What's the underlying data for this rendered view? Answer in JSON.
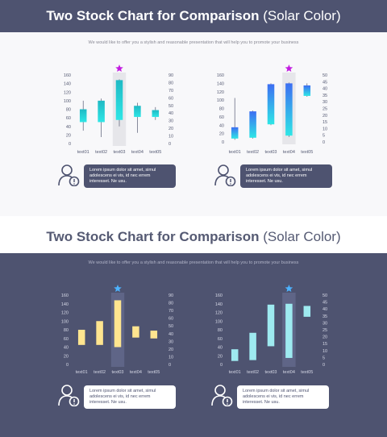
{
  "slides": [
    {
      "title_bold": "Two Stock Chart for Comparison",
      "title_light": "(Solar Color)",
      "subtitle": "We would like to offer you a stylish and reasonable presentation that will help you to promote your business",
      "callouts": [
        "Lorem ipsum dolor sit amet, simul adolescens ei vis, id nec errem interesset. Ne usu.",
        "Lorem ipsum dolor sit amet, simul adolescens ei vis, id nec errem interesset. Ne usu."
      ]
    },
    {
      "title_bold": "Two Stock Chart for Comparison",
      "title_light": "(Solar Color)",
      "subtitle": "We would like to offer you a stylish and reasonable presentation that will help you to promote your business",
      "callouts": [
        "Lorem ipsum dolor sit amet, simul adolescens ei vis, id nec errem interesset. Ne usu.",
        "Lorem ipsum dolor sit amet, simul adolescens ei vis, id nec errem interesset. Ne usu."
      ]
    }
  ],
  "colors": {
    "dark": "#4e5370",
    "cyan": "#2ee6e6",
    "blue": "#3d6ef2",
    "yellow": "#ffe58f",
    "lightcyan": "#9eeaf0",
    "star_purple": "#c21be0",
    "star_blue": "#4db3ff"
  },
  "icons": [
    "star-icon",
    "person-alert-icon"
  ],
  "chart_data": [
    {
      "type": "candlestick",
      "title": "",
      "categories": [
        "text01",
        "text02",
        "text03",
        "text04",
        "text05"
      ],
      "left_axis": {
        "ticks": [
          0,
          20,
          40,
          60,
          80,
          100,
          120,
          140,
          160
        ],
        "range": [
          0,
          160
        ]
      },
      "right_axis": {
        "ticks": [
          0,
          10,
          20,
          30,
          40,
          50,
          60,
          70,
          80,
          90
        ],
        "range": [
          0,
          90
        ]
      },
      "open": [
        80,
        100,
        148,
        88,
        78
      ],
      "close": [
        50,
        50,
        55,
        62,
        62
      ],
      "high": [
        100,
        105,
        150,
        95,
        85
      ],
      "low": [
        30,
        15,
        40,
        25,
        55
      ],
      "highlight": "text03"
    },
    {
      "type": "candlestick",
      "title": "",
      "categories": [
        "text01",
        "text02",
        "text03",
        "text04",
        "text05"
      ],
      "left_axis": {
        "ticks": [
          0,
          20,
          40,
          60,
          80,
          100,
          120,
          140,
          160
        ],
        "range": [
          0,
          160
        ]
      },
      "right_axis": {
        "ticks": [
          0,
          5,
          10,
          15,
          20,
          25,
          30,
          35,
          40,
          45,
          50
        ],
        "range": [
          0,
          50
        ]
      },
      "open": [
        35,
        73,
        138,
        140,
        135
      ],
      "close": [
        8,
        10,
        42,
        15,
        110
      ],
      "high": [
        105,
        75,
        140,
        142,
        140
      ],
      "low": [
        5,
        8,
        40,
        12,
        108
      ],
      "highlight": "text04"
    },
    {
      "type": "candlestick",
      "title": "",
      "categories": [
        "text01",
        "text02",
        "text03",
        "text04",
        "text05"
      ],
      "left_axis": {
        "ticks": [
          0,
          20,
          40,
          60,
          80,
          100,
          120,
          140,
          160
        ],
        "range": [
          0,
          160
        ]
      },
      "right_axis": {
        "ticks": [
          0,
          10,
          20,
          30,
          40,
          50,
          60,
          70,
          80,
          90
        ],
        "range": [
          0,
          90
        ]
      },
      "open": [
        80,
        100,
        148,
        88,
        78
      ],
      "close": [
        45,
        45,
        40,
        62,
        60
      ],
      "high": [
        80,
        100,
        148,
        88,
        78
      ],
      "low": [
        45,
        45,
        40,
        62,
        60
      ],
      "highlight": "text03"
    },
    {
      "type": "candlestick",
      "title": "",
      "categories": [
        "text01",
        "text02",
        "text03",
        "text04",
        "text05"
      ],
      "left_axis": {
        "ticks": [
          0,
          20,
          40,
          60,
          80,
          100,
          120,
          140,
          160
        ],
        "range": [
          0,
          160
        ]
      },
      "right_axis": {
        "ticks": [
          0,
          5,
          10,
          15,
          20,
          25,
          30,
          35,
          40,
          45,
          50
        ],
        "range": [
          0,
          50
        ]
      },
      "open": [
        35,
        73,
        138,
        140,
        135
      ],
      "close": [
        8,
        10,
        42,
        15,
        110
      ],
      "high": [
        35,
        73,
        138,
        140,
        135
      ],
      "low": [
        8,
        10,
        42,
        15,
        110
      ],
      "highlight": "text04"
    }
  ]
}
